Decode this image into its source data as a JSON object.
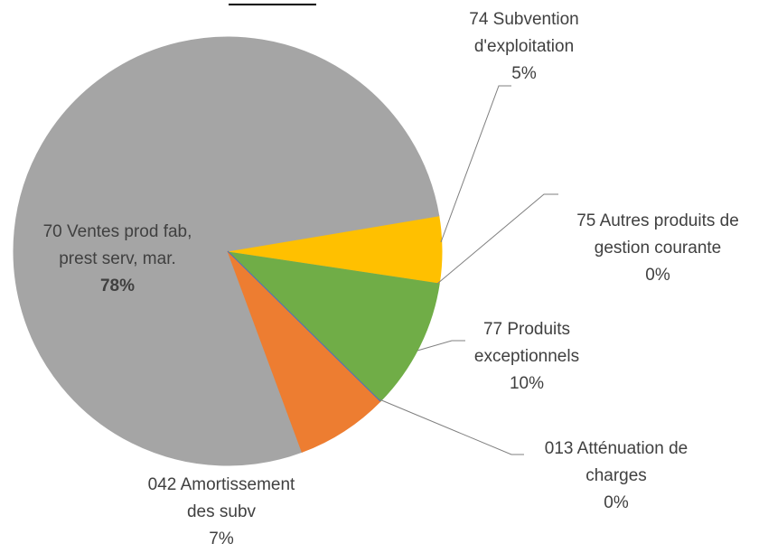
{
  "chart_data": {
    "type": "pie",
    "categories": [
      "013 Atténuation de charges",
      "042 Amortissement des subv",
      "70 Ventes prod fab, prest serv, mar.",
      "74 Subvention d'exploitation",
      "75 Autres produits de gestion courante",
      "77 Produits exceptionnels"
    ],
    "values": [
      0,
      7,
      78,
      5,
      0,
      10
    ],
    "value_labels": [
      "0%",
      "7%",
      "78%",
      "5%",
      "0%",
      "10%"
    ],
    "colors": [
      "#4472c4",
      "#ed7d31",
      "#a5a5a5",
      "#ffc000",
      "#5b9bd5",
      "#70ad47"
    ]
  }
}
